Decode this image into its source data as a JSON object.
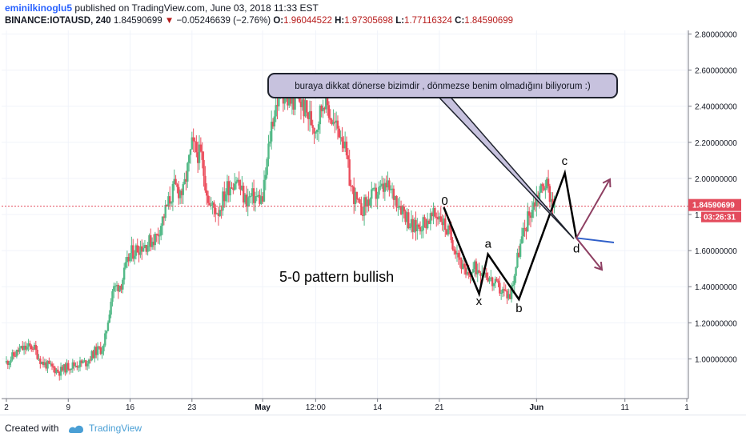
{
  "header": {
    "author": "eminilkinoglu5",
    "published_text": "published on TradingView.com, June 03, 2018 11:33 EST",
    "symbol": "BINANCE:IOTAUSD, 240",
    "price": "1.84590699",
    "change_arrow": "▼",
    "change": "−0.05246639 (−2.76%)",
    "open_label": "O:",
    "open": "1.96044522",
    "high_label": "H:",
    "high": "1.97305698",
    "low_label": "L:",
    "low": "1.77116324",
    "close_label": "C:",
    "close": "1.84590699"
  },
  "footer": {
    "created_with": "Created with",
    "brand": "TradingView"
  },
  "chart_data": {
    "type": "candlestick",
    "y_axis": {
      "ticks": [
        "2.80000000",
        "2.60000000",
        "2.40000000",
        "2.20000000",
        "2.00000000",
        "1.80000000",
        "1.60000000",
        "1.40000000",
        "1.20000000",
        "1.00000000"
      ],
      "ylim": [
        0.78,
        2.82
      ]
    },
    "x_axis": {
      "ticks": [
        {
          "label": "2",
          "day": 0
        },
        {
          "label": "9",
          "day": 7
        },
        {
          "label": "16",
          "day": 14
        },
        {
          "label": "23",
          "day": 21
        },
        {
          "label": "May",
          "day": 29
        },
        {
          "label": "12:00",
          "day": 35
        },
        {
          "label": "14",
          "day": 42
        },
        {
          "label": "21",
          "day": 49
        },
        {
          "label": "Jun",
          "day": 60
        },
        {
          "label": "11",
          "day": 70
        },
        {
          "label": "1",
          "day": 77
        }
      ],
      "xlim": [
        0,
        77
      ]
    },
    "last_price": {
      "value": 1.8459,
      "label": "1.84590699",
      "countdown": "03:26:31"
    },
    "price_path": [
      [
        0,
        0.98
      ],
      [
        1.5,
        1.05
      ],
      [
        3,
        1.07
      ],
      [
        4,
        0.98
      ],
      [
        6,
        0.93
      ],
      [
        7,
        0.96
      ],
      [
        8,
        0.97
      ],
      [
        9,
        0.98
      ],
      [
        10,
        1.04
      ],
      [
        11,
        1.06
      ],
      [
        12,
        1.38
      ],
      [
        13,
        1.42
      ],
      [
        14,
        1.58
      ],
      [
        15,
        1.62
      ],
      [
        16,
        1.64
      ],
      [
        17,
        1.68
      ],
      [
        18,
        1.82
      ],
      [
        19,
        1.95
      ],
      [
        20,
        1.92
      ],
      [
        21,
        2.18
      ],
      [
        22,
        2.12
      ],
      [
        23,
        1.85
      ],
      [
        24,
        1.82
      ],
      [
        25,
        1.95
      ],
      [
        26,
        2.0
      ],
      [
        27,
        1.88
      ],
      [
        28,
        1.9
      ],
      [
        29,
        1.88
      ],
      [
        30,
        2.3
      ],
      [
        31,
        2.5
      ],
      [
        32,
        2.42
      ],
      [
        33,
        2.45
      ],
      [
        34,
        2.36
      ],
      [
        35,
        2.28
      ],
      [
        36,
        2.45
      ],
      [
        37,
        2.3
      ],
      [
        38,
        2.25
      ],
      [
        39,
        1.95
      ],
      [
        40,
        1.82
      ],
      [
        41,
        1.88
      ],
      [
        42,
        1.92
      ],
      [
        43,
        1.95
      ],
      [
        44,
        1.9
      ],
      [
        45,
        1.82
      ],
      [
        46,
        1.72
      ],
      [
        47,
        1.75
      ],
      [
        48,
        1.78
      ],
      [
        49,
        1.8
      ],
      [
        50,
        1.7
      ],
      [
        51,
        1.6
      ],
      [
        52,
        1.45
      ],
      [
        53,
        1.5
      ],
      [
        54,
        1.5
      ],
      [
        55,
        1.42
      ],
      [
        56,
        1.38
      ],
      [
        57,
        1.35
      ],
      [
        58,
        1.6
      ],
      [
        59,
        1.78
      ],
      [
        60,
        1.9
      ],
      [
        61,
        1.98
      ],
      [
        62,
        1.85
      ]
    ],
    "pattern": {
      "points": [
        {
          "label": "0",
          "day": 49.5,
          "price": 1.84
        },
        {
          "label": "x",
          "day": 53.5,
          "price": 1.36
        },
        {
          "label": "a",
          "day": 54.5,
          "price": 1.58
        },
        {
          "label": "b",
          "day": 58,
          "price": 1.33
        },
        {
          "label": "c",
          "day": 63.2,
          "price": 2.03
        },
        {
          "label": "d",
          "day": 64.5,
          "price": 1.67
        }
      ],
      "title": "5-0 pattern bullish"
    },
    "callout": "buraya dikkat dönerse bizimdir , dönmezse benim olmadığını biliyorum :)"
  },
  "colors": {
    "up": "#53b987",
    "down": "#eb4d5c",
    "pattern": "#000000",
    "callout_fill": "#c7c2de",
    "arrow": "#8e3f62",
    "hline": "#2f5fc9",
    "last_price": "#e34b5c",
    "tv_logo": "#4a9fd5"
  }
}
